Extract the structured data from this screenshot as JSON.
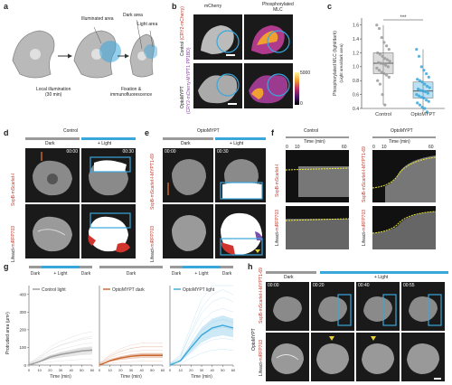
{
  "panels": {
    "a": {
      "letter": "a",
      "illuminated_label": "Illuminated area",
      "dark_label": "Dark area",
      "light_label": "Light area",
      "caption1": "Local illumination",
      "caption1b": "(30 min)",
      "caption2": "Fixation &",
      "caption2b": "immunofluorescence"
    },
    "b": {
      "letter": "b",
      "col1": "mCherry",
      "col2": "Phosphorylated",
      "col2b": "MLC",
      "row1": "Control",
      "row1b": "(CRY2-mCherry)",
      "row2": "OptoMYPT",
      "row2b": "(CRY2-mCherry-",
      "row2c": "MYPT1 PP1BD)",
      "cbar_max": "5000",
      "cbar_min": "0",
      "cbar_label": "Intensity"
    },
    "c": {
      "letter": "c",
      "ylabel": "Phosphorylated MLC (light/dark)",
      "ylabel2": "(Light area/dark area)",
      "sig": "***",
      "xt1": "Control",
      "xt2": "OptoMYPT",
      "ticks": [
        "0.4",
        "0.6",
        "0.8",
        "1.0",
        "1.2",
        "1.4",
        "1.6"
      ]
    },
    "d": {
      "letter": "d",
      "title": "Control",
      "dark": "Dark",
      "light": "+ Light",
      "t1": "00:00",
      "t2": "00:30",
      "row1": "SspB-mScarlet-I",
      "row2": "Lifeact-",
      "row2b": "miRFP703"
    },
    "e": {
      "letter": "e",
      "title": "OptoMYPT",
      "dark": "Dark",
      "light": "+ Light",
      "t1": "00:00",
      "t2": "00:30",
      "row1": "SspB-mScarlet-I-",
      "row1b": "MYPT1-69",
      "row2": "Lifeact-",
      "row2b": "miRFP703"
    },
    "f": {
      "letter": "f",
      "title1": "Control",
      "title2": "OptoMYPT",
      "time1": "Time (min)",
      "time2": "Time (min)",
      "t0": "0",
      "t10": "10",
      "t60": "60",
      "row1a": "SspB-mScarlet-I",
      "row1b": "SspB-mScarlet-I-",
      "row1c": "MYPT1-69",
      "row2": "Lifeact-",
      "row2b": "miRFP703"
    },
    "g": {
      "letter": "g",
      "ylabel": "Protruded area (μm²)",
      "xlabel": "Time (min)",
      "p1_bar": [
        "Dark",
        "+ Light",
        "Dark"
      ],
      "p2_bar": "Dark",
      "p3_bar": [
        "Dark",
        "+ Light",
        "Dark"
      ],
      "legend1": "Control light",
      "legend2": "OptoMYPT dark",
      "legend3": "OptoMYPT light",
      "yticks": [
        "0",
        "100",
        "200",
        "300",
        "400"
      ],
      "xticks": [
        "0",
        "10",
        "20",
        "30",
        "40",
        "50",
        "60"
      ]
    },
    "h": {
      "letter": "h",
      "dark": "Dark",
      "light": "+ Light",
      "t1": "00:00",
      "t2": "00:20",
      "t3": "00:40",
      "t4": "00:55",
      "row1": "SspB-mScarlet-I-",
      "row1b": "MYPT1-69",
      "row2": "Lifeact-",
      "row2b": "miRFP703",
      "side": "OptoMYPT"
    }
  },
  "chart_data": {
    "type": "box",
    "title": "",
    "categories": [
      "Control",
      "OptoMYPT"
    ],
    "ylabel": "Phosphorylated MLC (light/dark)",
    "ylim": [
      0.4,
      1.7
    ],
    "series": [
      {
        "name": "Control",
        "median": 1.05,
        "q1": 0.9,
        "q3": 1.2,
        "min": 0.45,
        "max": 1.6,
        "points": [
          1.6,
          1.55,
          1.42,
          1.35,
          1.3,
          1.25,
          1.2,
          1.18,
          1.15,
          1.12,
          1.1,
          1.08,
          1.06,
          1.05,
          1.04,
          1.02,
          1.0,
          0.98,
          0.95,
          0.92,
          0.9,
          0.88,
          0.85,
          0.8,
          0.75,
          0.6,
          0.45
        ]
      },
      {
        "name": "OptoMYPT",
        "median": 0.65,
        "q1": 0.55,
        "q3": 0.78,
        "min": 0.35,
        "max": 1.25,
        "points": [
          1.25,
          1.15,
          1.0,
          0.95,
          0.9,
          0.85,
          0.82,
          0.8,
          0.78,
          0.75,
          0.72,
          0.7,
          0.68,
          0.66,
          0.65,
          0.64,
          0.62,
          0.6,
          0.58,
          0.56,
          0.55,
          0.52,
          0.5,
          0.48,
          0.45,
          0.42,
          0.4,
          0.35
        ]
      }
    ],
    "colors": {
      "control": "#9a9a9a",
      "opto": "#3aa7dc",
      "orange": "#c8642c"
    },
    "line_chart": {
      "type": "line",
      "x": [
        0,
        10,
        20,
        30,
        40,
        50,
        60
      ],
      "ylim": [
        0,
        450
      ],
      "series": [
        {
          "name": "Control light",
          "values": [
            0,
            20,
            45,
            60,
            70,
            80,
            85
          ]
        },
        {
          "name": "OptoMYPT dark",
          "values": [
            0,
            25,
            40,
            50,
            55,
            55,
            55
          ]
        },
        {
          "name": "OptoMYPT light",
          "values": [
            0,
            25,
            100,
            170,
            210,
            225,
            210
          ]
        }
      ]
    }
  }
}
